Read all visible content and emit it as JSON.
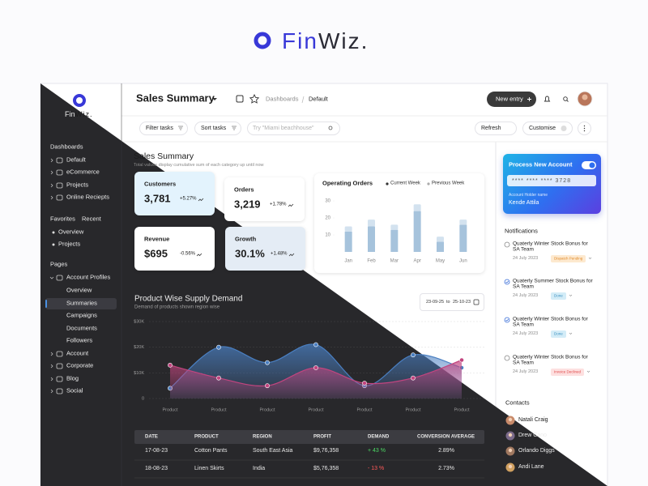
{
  "brand": {
    "first": "Fin",
    "second": "Wiz."
  },
  "sidebar": {
    "logo_first": "Fin",
    "logo_second": "Wiz.",
    "dashboards": {
      "title": "Dashboards",
      "items": [
        "Default",
        "eCommerce",
        "Projects",
        "Online Reciepts"
      ]
    },
    "favorites": {
      "title": "Favorites",
      "tab2": "Recent",
      "items": [
        "Overview",
        "Projects"
      ]
    },
    "pages": {
      "title": "Pages",
      "group": "Account Profiles",
      "children": [
        "Overview",
        "Summaries",
        "Campaigns",
        "Documents",
        "Followers"
      ],
      "items": [
        "Account",
        "Corporate",
        "Blog",
        "Social"
      ]
    }
  },
  "header": {
    "title": "Sales Summary",
    "breadcrumb": [
      "Dashboards",
      "Default"
    ],
    "new_entry": "New entry"
  },
  "toolbar": {
    "filter": "Filter tasks",
    "sort": "Sort tasks",
    "search": "Try \"Miami beachhouse\"",
    "refresh": "Refresh",
    "customise": "Customise"
  },
  "summary": {
    "title": "Sales Summary",
    "subtitle": "Total values display cumulative sum of each category up until now"
  },
  "kpis": [
    {
      "label": "Customers",
      "value": "3,781",
      "change": "+5.27%"
    },
    {
      "label": "Orders",
      "value": "3,219",
      "change": "+1.78%"
    },
    {
      "label": "Revenue",
      "value": "$695",
      "change": "-0.56%"
    },
    {
      "label": "Growth",
      "value": "30.1%",
      "change": "+1.48%"
    }
  ],
  "chart_data": [
    {
      "type": "bar",
      "title": "Operating Orders",
      "categories": [
        "Jan",
        "Feb",
        "Mar",
        "Apr",
        "May",
        "Jun"
      ],
      "series": [
        {
          "name": "Current Week",
          "color": "#a6c3dc",
          "values": [
            12,
            15,
            13,
            24,
            6,
            16
          ]
        },
        {
          "name": "Previous Week",
          "color": "#d3e2ef",
          "values": [
            3,
            4,
            3,
            4,
            3,
            3
          ]
        }
      ],
      "stacked": true,
      "ylim": [
        0,
        30
      ],
      "yticks": [
        10,
        20,
        30
      ]
    },
    {
      "type": "area",
      "title": "Product Wise Supply Demand",
      "subtitle": "Demand of products shown region wise",
      "date_from": "23-09-25",
      "date_sep": "to",
      "date_to": "25-10-23",
      "categories": [
        "Product",
        "Product",
        "Product",
        "Product",
        "Product",
        "Product",
        "Product"
      ],
      "series": [
        {
          "color": "#4a7fc1",
          "values": [
            4000,
            20000,
            14000,
            21000,
            5000,
            17000,
            12000
          ]
        },
        {
          "color": "#c2457f",
          "values": [
            13000,
            8000,
            5000,
            12000,
            6000,
            8000,
            15000
          ]
        }
      ],
      "ylim": [
        0,
        30000
      ],
      "yticks": [
        0,
        {
          "value": 10000,
          "label": "$10K"
        },
        {
          "value": 20000,
          "label": "$20K"
        },
        {
          "value": 30000,
          "label": "$30K"
        }
      ]
    }
  ],
  "table": {
    "headers": [
      "DATE",
      "PRODUCT",
      "REGION",
      "PROFIT",
      "DEMAND",
      "CONVERSION AVERAGE"
    ],
    "rows": [
      [
        "17-08-23",
        "Cotton Pants",
        "South East Asia",
        "$9,76,358",
        "+ 43 %",
        "2.89%"
      ],
      [
        "18-08-23",
        "Linen Skirts",
        "India",
        "$5,76,358",
        "- 13 %",
        "2.73%"
      ]
    ]
  },
  "card": {
    "title": "Process New Account",
    "number": "**** **** **** 3728",
    "holder_label": "Account Holder name",
    "holder": "Kende Attila"
  },
  "notifications": {
    "title": "Notifications",
    "items": [
      {
        "title": "Quaterly Winter Stock Bonus for SA Team",
        "date": "24 July 2023",
        "status": "Dispatch Pending"
      },
      {
        "title": "Quaterly Summer Stock Bonus for SA Team",
        "date": "24 July 2023",
        "status": "Done"
      },
      {
        "title": "Quaterly Winter Stock Bonus for SA Team",
        "date": "24 July 2023",
        "status": "Done"
      },
      {
        "title": "Quaterly Winter Stock Bonus for SA Team",
        "date": "24 July 2023",
        "status": "Invoice Declined"
      }
    ]
  },
  "contacts": {
    "title": "Contacts",
    "items": [
      "Natali Craig",
      "Drew Cano",
      "Orlando Diggs",
      "Andi Lane"
    ]
  }
}
